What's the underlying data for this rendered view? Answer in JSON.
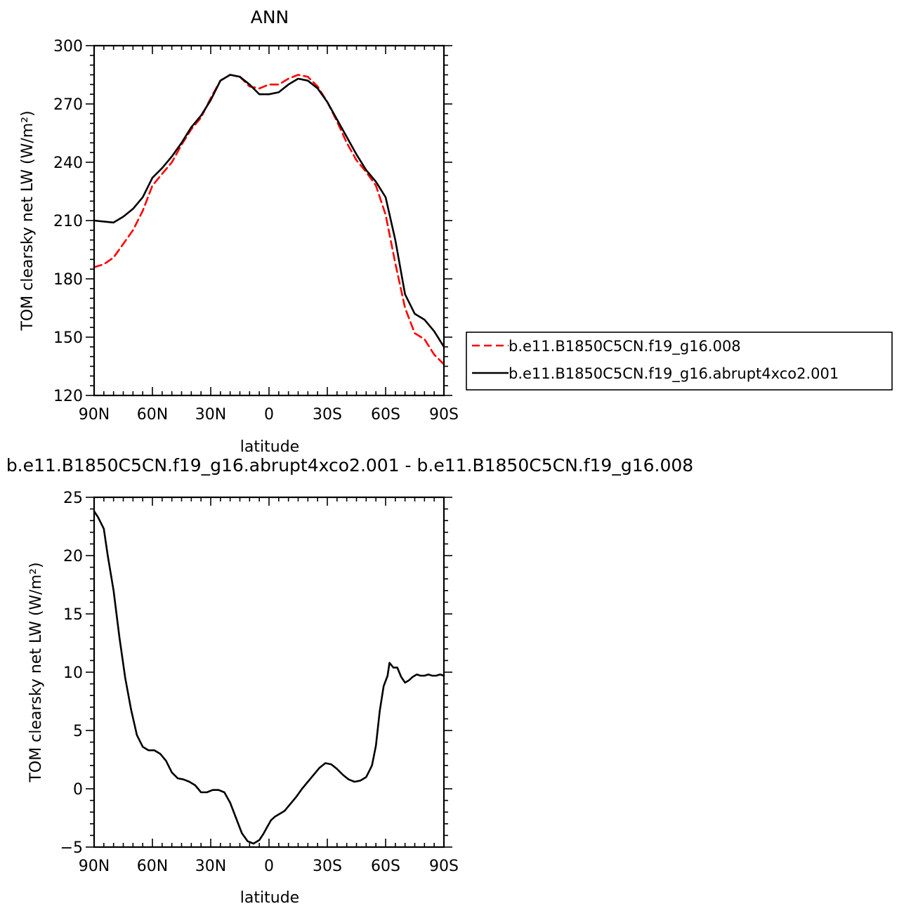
{
  "chart_data": [
    {
      "type": "line",
      "title": "ANN",
      "xlabel": "latitude",
      "ylabel": "TOM clearsky net LW (W/m²)",
      "xlim": [
        -90,
        90
      ],
      "ylim": [
        120,
        300
      ],
      "x_ticks": [
        -90,
        -60,
        -30,
        0,
        30,
        60,
        90
      ],
      "x_tick_labels": [
        "90N",
        "60N",
        "30N",
        "0",
        "30S",
        "60S",
        "90S"
      ],
      "y_ticks": [
        120,
        150,
        180,
        210,
        240,
        270,
        300
      ],
      "y_tick_labels": [
        "120",
        "150",
        "180",
        "210",
        "240",
        "270",
        "300"
      ],
      "legend_position": "right",
      "series": [
        {
          "name": "b.e11.B1850C5CN.f19_g16.008",
          "color": "#ff0000",
          "dash": "dashed",
          "x": [
            -90,
            -85,
            -80,
            -75,
            -70,
            -65,
            -60,
            -55,
            -50,
            -45,
            -40,
            -35,
            -30,
            -25,
            -20,
            -15,
            -10,
            -5,
            0,
            5,
            10,
            15,
            20,
            25,
            30,
            35,
            40,
            45,
            50,
            55,
            60,
            65,
            70,
            75,
            80,
            85,
            90
          ],
          "y": [
            186,
            187.5,
            191,
            198,
            205,
            215,
            228,
            234,
            240,
            249,
            257,
            263,
            273,
            282,
            285,
            284,
            279,
            278,
            280,
            280,
            283,
            285,
            284,
            279,
            271,
            261,
            250,
            241,
            235,
            228,
            213,
            188,
            165,
            152,
            149,
            141,
            136
          ]
        },
        {
          "name": "b.e11.B1850C5CN.f19_g16.abrupt4xco2.001",
          "color": "#000000",
          "dash": "solid",
          "x": [
            -90,
            -85,
            -80,
            -75,
            -70,
            -65,
            -60,
            -55,
            -50,
            -45,
            -40,
            -35,
            -30,
            -25,
            -20,
            -15,
            -10,
            -5,
            0,
            5,
            10,
            15,
            20,
            25,
            30,
            35,
            40,
            45,
            50,
            55,
            60,
            65,
            70,
            75,
            80,
            85,
            90
          ],
          "y": [
            210,
            209.5,
            209,
            212,
            216,
            222,
            232,
            237,
            243,
            250,
            258,
            264,
            272,
            282,
            285,
            284,
            280,
            275,
            275,
            276,
            280,
            283,
            282,
            278,
            271,
            262,
            253,
            244,
            236,
            230,
            222,
            200,
            172,
            162,
            159,
            153,
            145
          ]
        }
      ]
    },
    {
      "type": "line",
      "title": "b.e11.B1850C5CN.f19_g16.abrupt4xco2.001 - b.e11.B1850C5CN.f19_g16.008",
      "xlabel": "latitude",
      "ylabel": "TOM clearsky net LW (W/m²)",
      "xlim": [
        -90,
        90
      ],
      "ylim": [
        -5,
        25
      ],
      "x_ticks": [
        -90,
        -60,
        -30,
        0,
        30,
        60,
        90
      ],
      "x_tick_labels": [
        "90N",
        "60N",
        "30N",
        "0",
        "30S",
        "60S",
        "90S"
      ],
      "y_ticks": [
        -5,
        0,
        5,
        10,
        15,
        20,
        25
      ],
      "y_tick_labels": [
        "−5",
        "0",
        "5",
        "10",
        "15",
        "20",
        "25"
      ],
      "series": [
        {
          "color": "#000000",
          "dash": "solid",
          "x": [
            -90,
            -88,
            -85,
            -83,
            -80,
            -77,
            -74,
            -71,
            -68,
            -65,
            -62,
            -59,
            -56,
            -53,
            -50,
            -47,
            -44,
            -41,
            -38,
            -35,
            -32,
            -29,
            -26,
            -23,
            -20,
            -17,
            -14,
            -11,
            -8,
            -5,
            -3,
            -1,
            1,
            3,
            5,
            8,
            11,
            14,
            17,
            20,
            23,
            26,
            29,
            32,
            35,
            38,
            41,
            44,
            47,
            50,
            53,
            55,
            57,
            59,
            61,
            62,
            64,
            66,
            68,
            70,
            72,
            74,
            76,
            78,
            80,
            82,
            84,
            86,
            88,
            90
          ],
          "y": [
            23.8,
            23.3,
            22.3,
            20.0,
            17.0,
            13.0,
            9.5,
            6.8,
            4.6,
            3.6,
            3.3,
            3.3,
            3.0,
            2.4,
            1.4,
            0.9,
            0.8,
            0.6,
            0.3,
            -0.3,
            -0.3,
            -0.1,
            -0.1,
            -0.3,
            -1.2,
            -2.5,
            -3.8,
            -4.5,
            -4.7,
            -4.4,
            -3.9,
            -3.3,
            -2.7,
            -2.4,
            -2.2,
            -1.9,
            -1.3,
            -0.7,
            0.0,
            0.6,
            1.2,
            1.8,
            2.2,
            2.1,
            1.7,
            1.2,
            0.8,
            0.6,
            0.7,
            1.0,
            2.0,
            3.7,
            6.7,
            8.8,
            9.7,
            10.8,
            10.4,
            10.4,
            9.6,
            9.1,
            9.3,
            9.6,
            9.8,
            9.7,
            9.7,
            9.8,
            9.7,
            9.7,
            9.8,
            9.7
          ]
        }
      ]
    }
  ]
}
